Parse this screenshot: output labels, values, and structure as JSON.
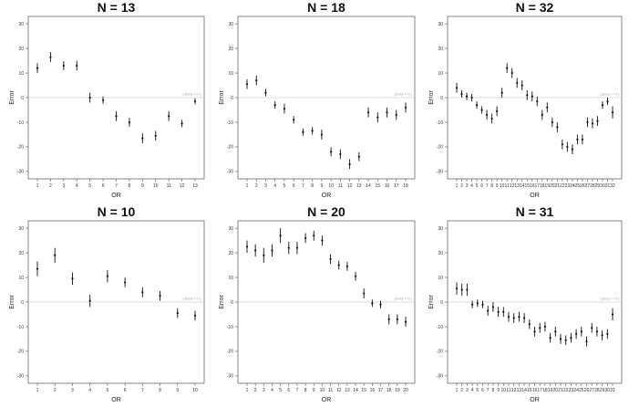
{
  "chart_data": [
    {
      "type": "scatter",
      "title": "N = 13",
      "xlabel": "OR",
      "ylabel": "Error",
      "ylim": [
        -33,
        33
      ],
      "yticks": [
        30,
        20,
        10,
        0,
        -10,
        -20,
        -30
      ],
      "xticks": [
        1,
        2,
        3,
        4,
        5,
        6,
        7,
        8,
        9,
        10,
        11,
        12,
        13
      ],
      "reference_line": {
        "y": 0,
        "label": "( Error = 0 )"
      },
      "x": [
        1,
        2,
        3,
        4,
        5,
        6,
        7,
        8,
        9,
        10,
        11,
        12,
        13
      ],
      "values": [
        12,
        16.5,
        13,
        13,
        0,
        -1,
        -7.5,
        -10,
        -16.5,
        -15.5,
        -7.5,
        -10.5,
        -1.5
      ],
      "err": [
        2,
        2,
        1.8,
        2,
        2,
        1.5,
        2,
        1.8,
        2,
        2,
        2,
        1.5,
        1.2
      ]
    },
    {
      "type": "scatter",
      "title": "N = 18",
      "xlabel": "OR",
      "ylabel": "Error",
      "ylim": [
        -33,
        33
      ],
      "yticks": [
        30,
        20,
        10,
        0,
        -10,
        -20,
        -30
      ],
      "xticks": [
        1,
        2,
        3,
        4,
        5,
        6,
        7,
        8,
        9,
        10,
        11,
        12,
        13,
        14,
        15,
        16,
        17,
        18
      ],
      "reference_line": {
        "y": 0,
        "label": "( Error = 0 )"
      },
      "x": [
        1,
        2,
        3,
        4,
        5,
        6,
        7,
        8,
        9,
        10,
        11,
        12,
        13,
        14,
        15,
        16,
        17,
        18
      ],
      "values": [
        5.5,
        7,
        2,
        -3,
        -4.5,
        -9,
        -14,
        -13.5,
        -15,
        -22,
        -23,
        -27,
        -24,
        -6,
        -8,
        -6,
        -7,
        -4
      ],
      "err": [
        2,
        2,
        1.5,
        1.5,
        2,
        1.5,
        1.5,
        1.5,
        2,
        1.8,
        2,
        2,
        1.8,
        2,
        2,
        2,
        2,
        2
      ]
    },
    {
      "type": "scatter",
      "title": "N = 32",
      "xlabel": "OR",
      "ylabel": "Error",
      "ylim": [
        -33,
        33
      ],
      "yticks": [
        30,
        20,
        10,
        0,
        -10,
        -20,
        -30
      ],
      "xticks": [
        1,
        2,
        3,
        4,
        5,
        6,
        7,
        8,
        9,
        10,
        11,
        12,
        13,
        14,
        15,
        16,
        17,
        18,
        19,
        20,
        21,
        22,
        23,
        24,
        25,
        26,
        27,
        28,
        29,
        30,
        31,
        32
      ],
      "reference_line": {
        "y": 0,
        "label": "( Error = 0 )"
      },
      "x": [
        1,
        2,
        3,
        4,
        5,
        6,
        7,
        8,
        9,
        10,
        11,
        12,
        13,
        14,
        15,
        16,
        17,
        18,
        19,
        20,
        21,
        22,
        23,
        24,
        25,
        26,
        27,
        28,
        29,
        30,
        31,
        32
      ],
      "values": [
        4,
        1.5,
        0.5,
        0,
        -3,
        -5,
        -7,
        -8.5,
        -5.5,
        2,
        12,
        10,
        6,
        5,
        1,
        0.5,
        -1.5,
        -7,
        -4,
        -10,
        -12,
        -19,
        -20,
        -21,
        -17,
        -17,
        -10,
        -10.5,
        -9.5,
        -3,
        -1.5,
        -6
      ],
      "err": [
        2,
        1.5,
        1.5,
        1.5,
        1.5,
        1.5,
        2,
        2,
        2,
        2,
        2,
        2,
        2,
        2,
        2,
        2,
        2,
        2,
        2,
        2,
        2,
        2,
        2,
        2,
        2,
        2,
        2,
        2,
        2,
        1.5,
        1.5,
        2.5
      ]
    },
    {
      "type": "scatter",
      "title": "N = 10",
      "xlabel": "OR",
      "ylabel": "Error",
      "ylim": [
        -33,
        33
      ],
      "yticks": [
        30,
        20,
        10,
        0,
        -10,
        -20,
        -30
      ],
      "xticks": [
        1,
        2,
        3,
        4,
        5,
        6,
        7,
        8,
        9,
        10
      ],
      "reference_line": {
        "y": 0,
        "label": "( Error = 0 )"
      },
      "x": [
        1,
        2,
        3,
        4,
        5,
        6,
        7,
        8,
        9,
        10
      ],
      "values": [
        13.5,
        19,
        9.5,
        0.5,
        10.5,
        8,
        4,
        2.5,
        -4.5,
        -5.5
      ],
      "err": [
        3,
        3,
        2.5,
        2.5,
        2.5,
        2,
        2,
        2,
        2,
        2
      ]
    },
    {
      "type": "scatter",
      "title": "N = 20",
      "xlabel": "OR",
      "ylabel": "Error",
      "ylim": [
        -33,
        33
      ],
      "yticks": [
        30,
        20,
        10,
        0,
        -10,
        -20,
        -30
      ],
      "xticks": [
        1,
        2,
        3,
        4,
        5,
        6,
        7,
        8,
        9,
        10,
        11,
        12,
        13,
        14,
        15,
        16,
        17,
        18,
        19,
        20
      ],
      "reference_line": {
        "y": 0,
        "label": "( Error = 0 )"
      },
      "x": [
        1,
        2,
        3,
        4,
        5,
        6,
        7,
        8,
        9,
        10,
        11,
        12,
        13,
        14,
        15,
        16,
        17,
        18,
        19,
        20
      ],
      "values": [
        22.5,
        21,
        19,
        21,
        27,
        22,
        22,
        26,
        27,
        25,
        17.5,
        15,
        14.5,
        10.5,
        3.5,
        -0.5,
        -1,
        -7,
        -7,
        -8
      ],
      "err": [
        2.5,
        2.5,
        3,
        2.5,
        3,
        2.5,
        2.5,
        2,
        2,
        2,
        2,
        1.8,
        1.8,
        1.8,
        2,
        1.5,
        1.5,
        2,
        2,
        2
      ]
    },
    {
      "type": "scatter",
      "title": "N = 31",
      "xlabel": "OR",
      "ylabel": "Error",
      "ylim": [
        -33,
        33
      ],
      "yticks": [
        30,
        20,
        10,
        0,
        -10,
        -20,
        -30
      ],
      "xticks": [
        1,
        2,
        3,
        4,
        5,
        6,
        7,
        8,
        9,
        10,
        11,
        12,
        13,
        14,
        15,
        16,
        17,
        18,
        19,
        20,
        21,
        22,
        23,
        24,
        25,
        26,
        27,
        28,
        29,
        30,
        31
      ],
      "reference_line": {
        "y": 0,
        "label": "( Error = 0 )"
      },
      "x": [
        1,
        2,
        3,
        4,
        5,
        6,
        7,
        8,
        9,
        10,
        11,
        12,
        13,
        14,
        15,
        16,
        17,
        18,
        19,
        20,
        21,
        22,
        23,
        24,
        25,
        26,
        27,
        28,
        29,
        30,
        31
      ],
      "values": [
        5.5,
        5,
        5,
        -1,
        -0.5,
        -1,
        -3.5,
        -2,
        -4,
        -4,
        -6,
        -6.5,
        -6,
        -6.5,
        -9,
        -12,
        -10.5,
        -10,
        -14.5,
        -12,
        -15,
        -15.5,
        -14.5,
        -13,
        -12,
        -16,
        -10.5,
        -12,
        -13.5,
        -13,
        -5
      ],
      "err": [
        2.5,
        2.5,
        2.5,
        1.5,
        1.5,
        1.5,
        2,
        2,
        2,
        2,
        2,
        2,
        2,
        2,
        2,
        2,
        2,
        2,
        2,
        2,
        2,
        2,
        2,
        2,
        2,
        2,
        2,
        2,
        2,
        2,
        2.5
      ]
    }
  ]
}
